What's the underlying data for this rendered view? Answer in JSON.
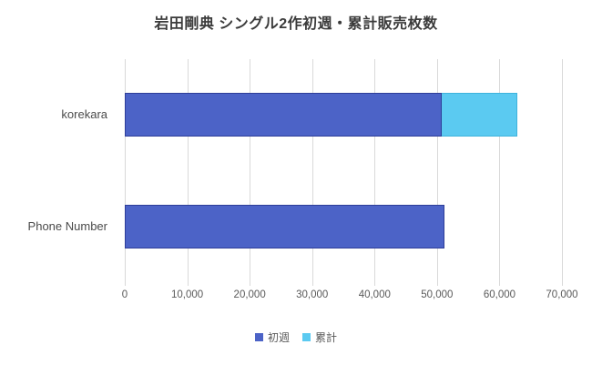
{
  "chart_data": {
    "type": "bar",
    "orientation": "horizontal-stacked",
    "title": "岩田剛典 シングル2作初週・累計販売枚数",
    "categories": [
      "korekara",
      "Phone Number"
    ],
    "series": [
      {
        "name": "初週",
        "color": "#4C63C7",
        "border_color": "#2E3E99",
        "values": [
          50800,
          51200
        ]
      },
      {
        "name": "累計",
        "color": "#5BCAF1",
        "border_color": "#3FB3DC",
        "values": [
          62900,
          51200
        ]
      }
    ],
    "series_note": "累計 segment is drawn only as the portion extending beyond 初週; Phone Number shows no visible 累計 extension",
    "x_axis": {
      "min": 0,
      "max": 70000,
      "tick_interval": 10000,
      "tick_labels": [
        "0",
        "10,000",
        "20,000",
        "30,000",
        "40,000",
        "50,000",
        "60,000",
        "70,000"
      ]
    },
    "legend": {
      "position": "bottom",
      "items": [
        "初週",
        "累計"
      ]
    },
    "grid": true,
    "colors": {
      "gridline": "#D9D9D9",
      "axis_text": "#595959",
      "category_text": "#4A4A4A",
      "title_text": "#3B3B3B",
      "background": "#FFFFFF"
    }
  }
}
